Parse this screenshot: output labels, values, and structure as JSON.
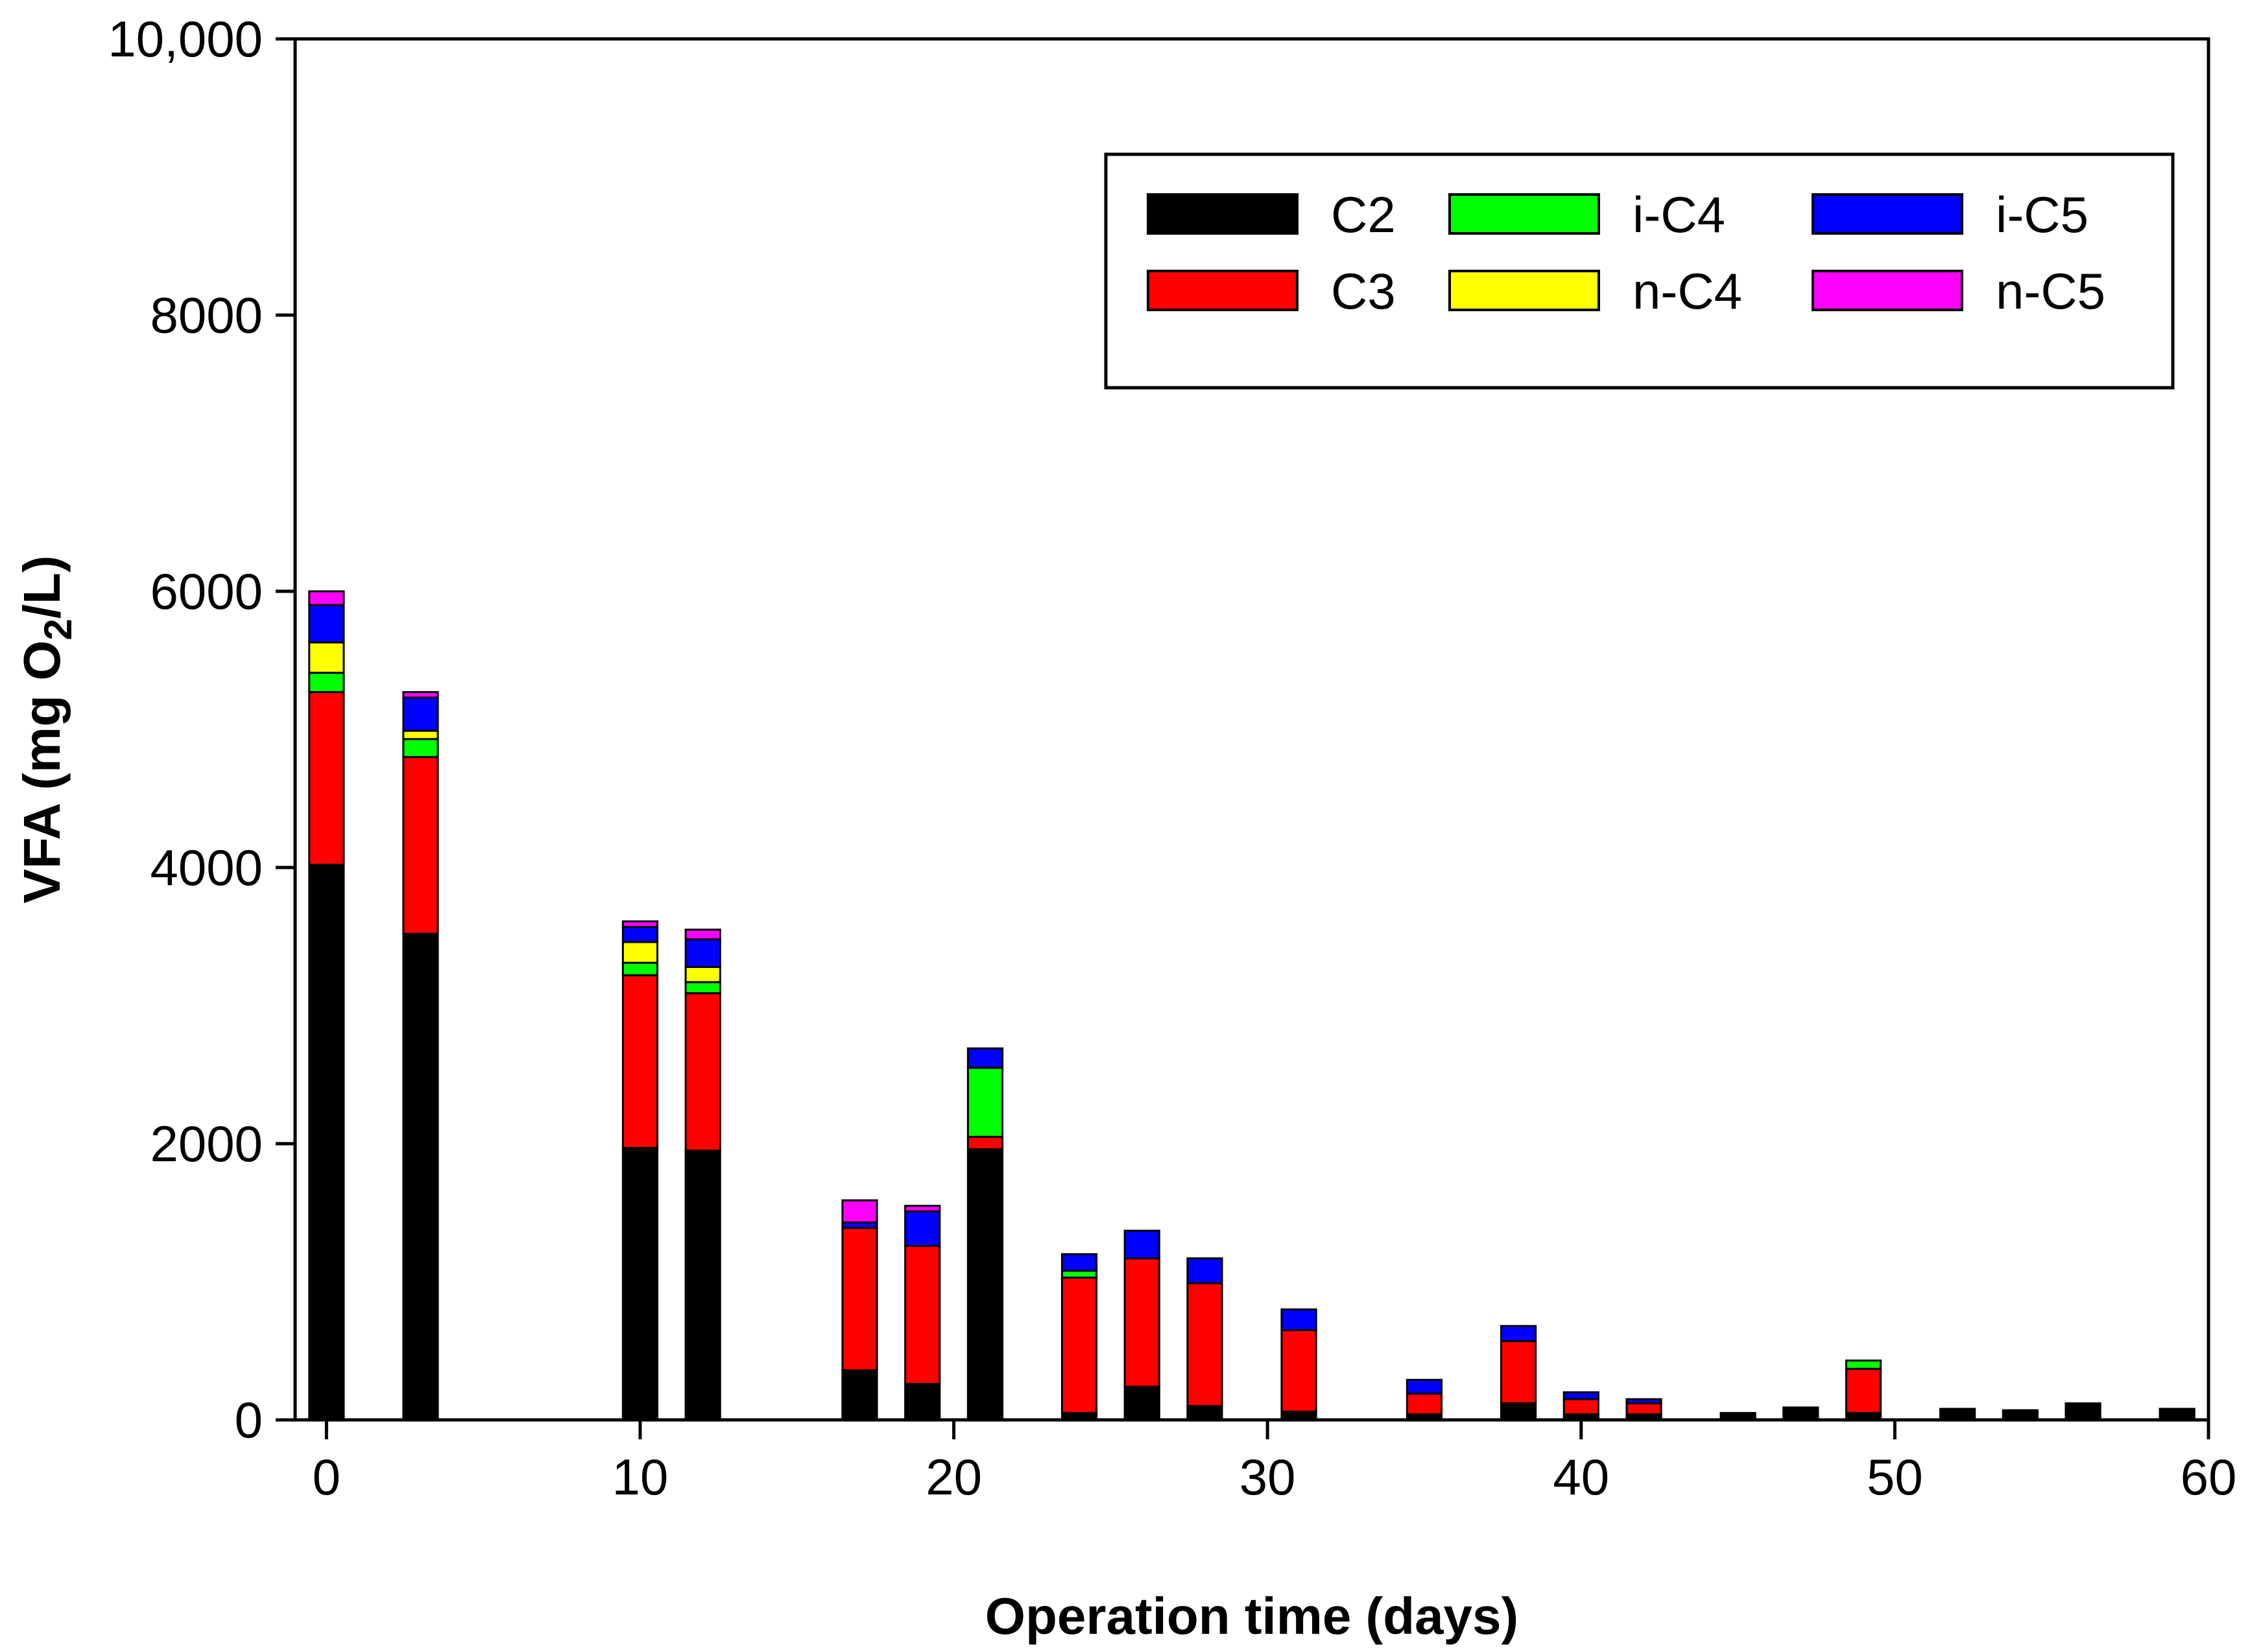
{
  "chart_data": {
    "type": "bar",
    "stacked": true,
    "title": "",
    "xlabel": "Operation time (days)",
    "ylabel_parts": {
      "prefix": "VFA (mg O",
      "subscript": "2",
      "suffix": "/L)"
    },
    "xlim": [
      -1,
      60
    ],
    "ylim": [
      0,
      10000
    ],
    "xticks": [
      0,
      10,
      20,
      30,
      40,
      50,
      60
    ],
    "yticks": [
      0,
      2000,
      4000,
      6000,
      8000,
      10000
    ],
    "ytick_labels": [
      "0",
      "2000",
      "4000",
      "6000",
      "8000",
      "10,000"
    ],
    "legend_position": "top-right",
    "bar_width_days": 1.1,
    "series": [
      {
        "name": "C2",
        "color": "#000000"
      },
      {
        "name": "C3",
        "color": "#ff0000"
      },
      {
        "name": "i-C4",
        "color": "#00ff00"
      },
      {
        "name": "n-C4",
        "color": "#ffff00"
      },
      {
        "name": "i-C5",
        "color": "#0000ff"
      },
      {
        "name": "n-C5",
        "color": "#ff00ff"
      }
    ],
    "bars": [
      {
        "x": 0,
        "values": [
          4020,
          1250,
          140,
          220,
          270,
          100
        ]
      },
      {
        "x": 3,
        "values": [
          3520,
          1280,
          130,
          60,
          240,
          40
        ]
      },
      {
        "x": 10,
        "values": [
          1970,
          1250,
          90,
          150,
          110,
          40
        ]
      },
      {
        "x": 12,
        "values": [
          1950,
          1140,
          80,
          110,
          200,
          70
        ]
      },
      {
        "x": 17,
        "values": [
          360,
          1030,
          0,
          0,
          40,
          160
        ]
      },
      {
        "x": 19,
        "values": [
          260,
          1000,
          0,
          0,
          250,
          40
        ]
      },
      {
        "x": 21,
        "values": [
          1960,
          90,
          500,
          0,
          140,
          0
        ]
      },
      {
        "x": 24,
        "values": [
          50,
          980,
          50,
          0,
          120,
          0
        ]
      },
      {
        "x": 26,
        "values": [
          240,
          930,
          0,
          0,
          200,
          0
        ]
      },
      {
        "x": 28,
        "values": [
          100,
          890,
          0,
          0,
          180,
          0
        ]
      },
      {
        "x": 31,
        "values": [
          60,
          590,
          0,
          0,
          150,
          0
        ]
      },
      {
        "x": 35,
        "values": [
          40,
          150,
          0,
          0,
          100,
          0
        ]
      },
      {
        "x": 38,
        "values": [
          120,
          450,
          0,
          0,
          110,
          0
        ]
      },
      {
        "x": 40,
        "values": [
          40,
          110,
          0,
          0,
          50,
          0
        ]
      },
      {
        "x": 42,
        "values": [
          40,
          80,
          0,
          0,
          30,
          0
        ]
      },
      {
        "x": 45,
        "values": [
          50,
          0,
          0,
          0,
          0,
          0
        ]
      },
      {
        "x": 47,
        "values": [
          90,
          0,
          0,
          0,
          0,
          0
        ]
      },
      {
        "x": 49,
        "values": [
          50,
          320,
          60,
          0,
          0,
          0
        ]
      },
      {
        "x": 52,
        "values": [
          80,
          0,
          0,
          0,
          0,
          0
        ]
      },
      {
        "x": 54,
        "values": [
          70,
          0,
          0,
          0,
          0,
          0
        ]
      },
      {
        "x": 56,
        "values": [
          120,
          0,
          0,
          0,
          0,
          0
        ]
      },
      {
        "x": 59,
        "values": [
          80,
          0,
          0,
          0,
          0,
          0
        ]
      }
    ]
  }
}
